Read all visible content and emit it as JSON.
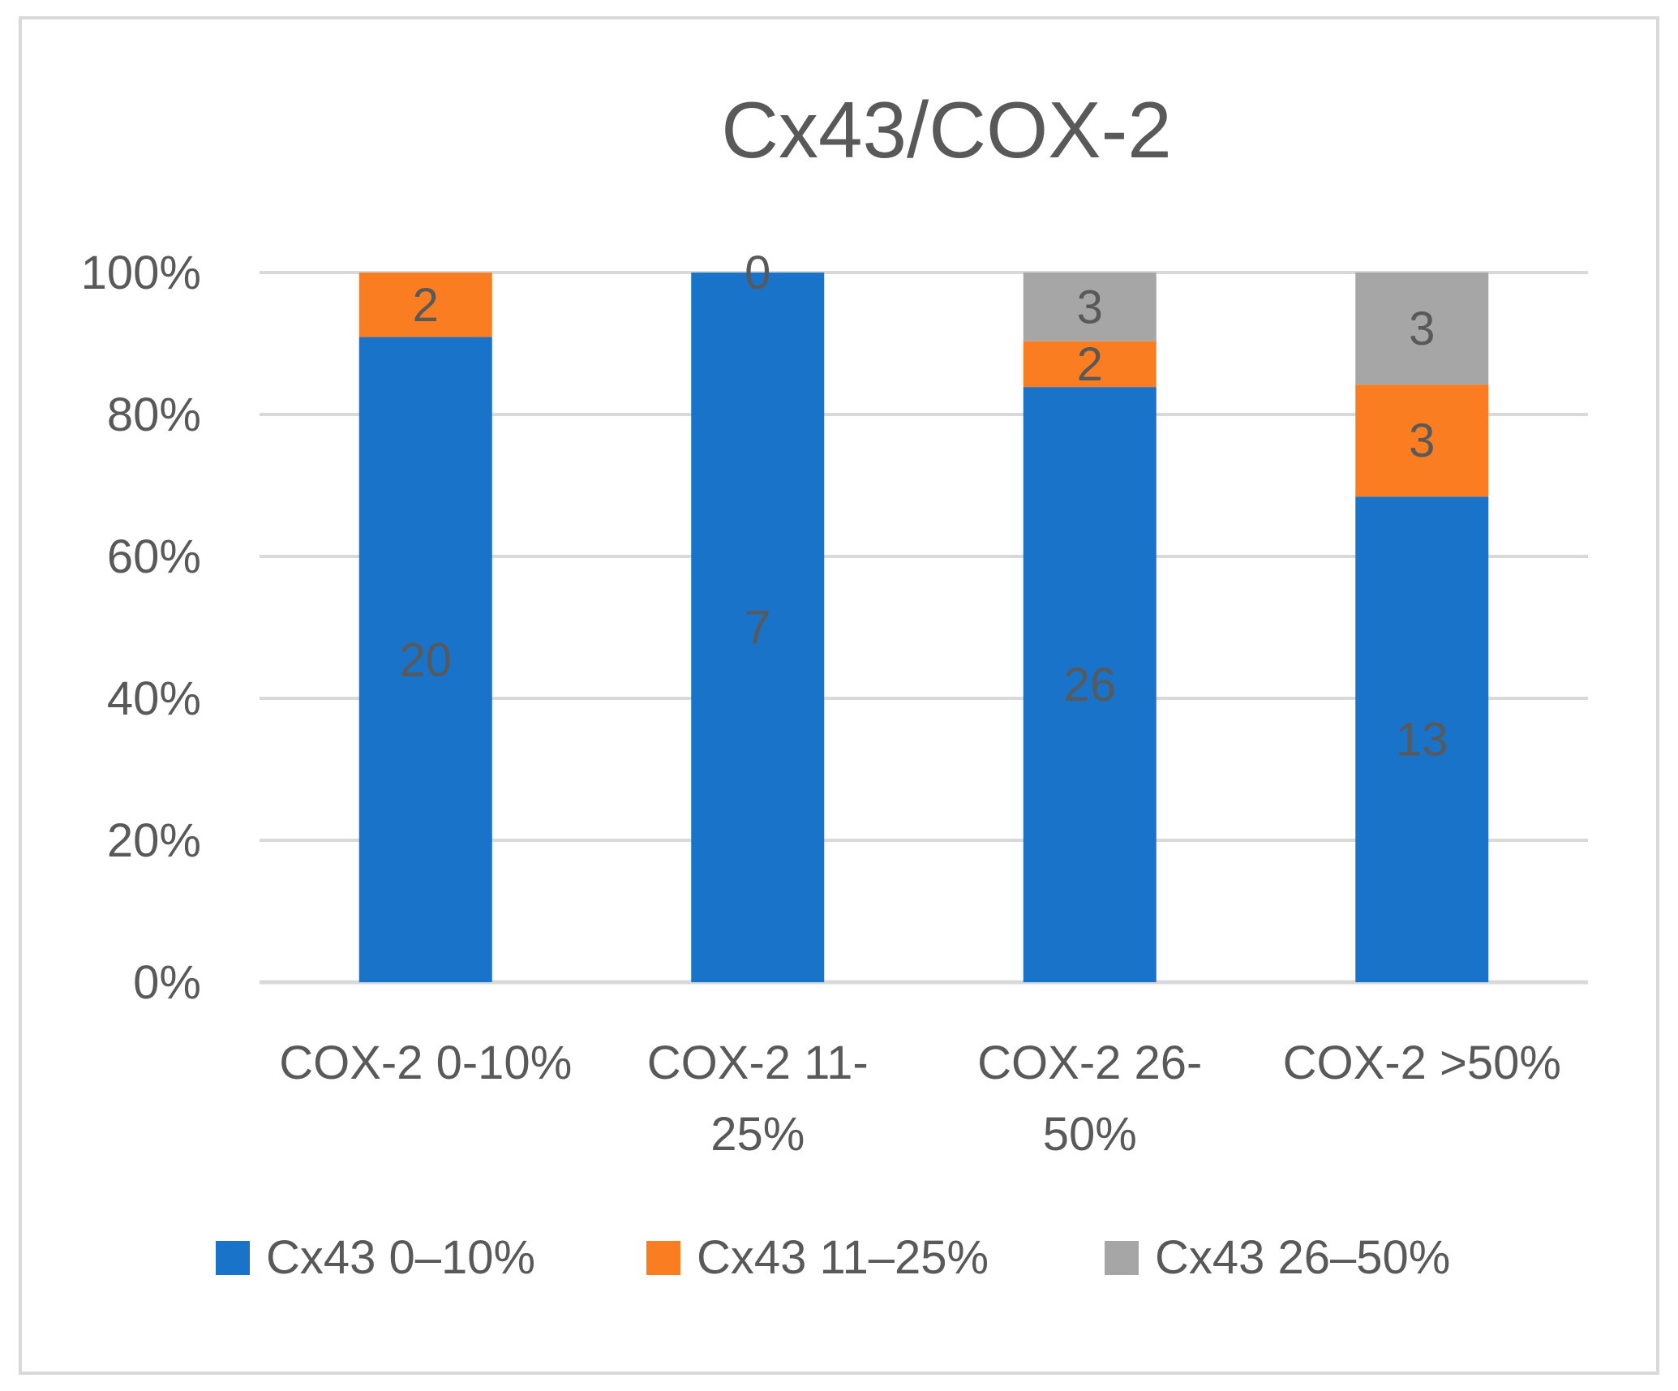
{
  "chart_data": {
    "type": "bar",
    "stacked": "percent",
    "title": "Cx43/COX-2",
    "xlabel": "",
    "ylabel": "",
    "ylim": [
      0,
      100
    ],
    "y_ticks": [
      0,
      20,
      40,
      60,
      80,
      100
    ],
    "y_tick_labels": [
      "0%",
      "20%",
      "40%",
      "60%",
      "80%",
      "100%"
    ],
    "categories": [
      "COX-2 0-10%",
      "COX-2 11-25%",
      "COX-2 26-50%",
      "COX-2 >50%"
    ],
    "category_label_lines": [
      [
        "COX-2 0-10%"
      ],
      [
        "COX-2 11-",
        "25%"
      ],
      [
        "COX-2 26-",
        "50%"
      ],
      [
        "COX-2 >50%"
      ]
    ],
    "series": [
      {
        "name": "Cx43 0–10%",
        "color": "#1873c9",
        "values": [
          20,
          7,
          26,
          13
        ]
      },
      {
        "name": "Cx43 11–25%",
        "color": "#fb7d22",
        "values": [
          2,
          0,
          2,
          3
        ]
      },
      {
        "name": "Cx43 26–50%",
        "color": "#a6a6a6",
        "values": [
          0,
          0,
          3,
          3
        ]
      }
    ],
    "legend_position": "bottom",
    "grid": true
  }
}
